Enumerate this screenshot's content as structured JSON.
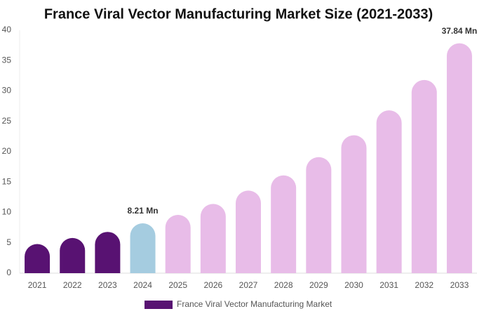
{
  "chart_data": {
    "type": "bar",
    "title": "France Viral Vector Manufacturing Market Size (2021-2033)",
    "categories": [
      "2021",
      "2022",
      "2023",
      "2024",
      "2025",
      "2026",
      "2027",
      "2028",
      "2029",
      "2030",
      "2031",
      "2032",
      "2033"
    ],
    "series": [
      {
        "name": "France Viral Vector Manufacturing Market",
        "color": "#581272",
        "colors": [
          "#581272",
          "#581272",
          "#581272",
          "#a5cce0",
          "#e8bce8",
          "#e8bce8",
          "#e8bce8",
          "#e8bce8",
          "#e8bce8",
          "#e8bce8",
          "#e8bce8",
          "#e8bce8",
          "#e8bce8"
        ],
        "values": [
          4.8,
          5.8,
          6.8,
          8.21,
          9.6,
          11.4,
          13.6,
          16.1,
          19.1,
          22.7,
          26.8,
          31.8,
          37.84
        ],
        "value_labels": [
          null,
          null,
          null,
          "8.21 Mn",
          null,
          null,
          null,
          null,
          null,
          null,
          null,
          null,
          "37.84 Mn"
        ]
      }
    ],
    "ylim": [
      0,
      40
    ],
    "yticks": [
      0,
      5,
      10,
      15,
      20,
      25,
      30,
      35,
      40
    ],
    "grid": false
  }
}
